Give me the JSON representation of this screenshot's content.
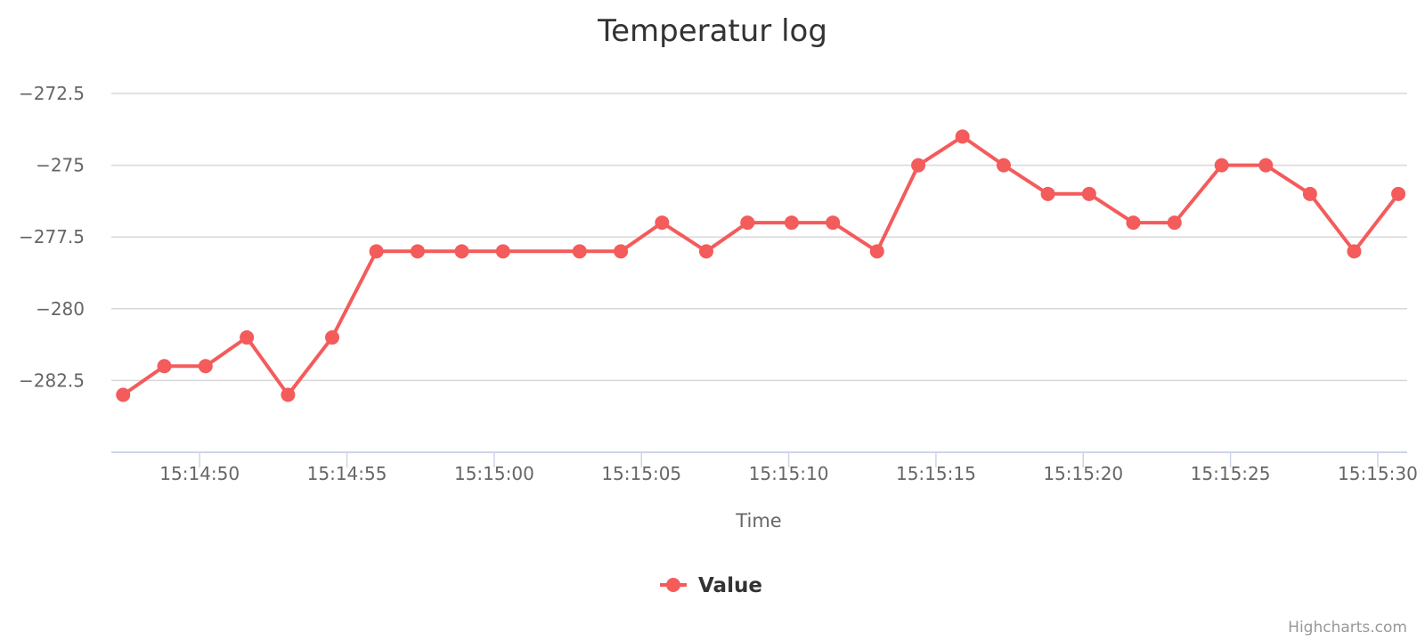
{
  "chart_data": {
    "type": "line",
    "title": "Temperatur log",
    "xlabel": "Time",
    "ylabel": "",
    "x_tick_labels": [
      "15:14:50",
      "15:14:55",
      "15:15:00",
      "15:15:05",
      "15:15:10",
      "15:15:15",
      "15:15:20",
      "15:15:25",
      "15:15:30"
    ],
    "y_tick_labels": [
      "-272.5",
      "-275",
      "-277.5",
      "-280",
      "-282.5"
    ],
    "ylim": [
      -285,
      -272.5
    ],
    "xlim": [
      "15:14:47",
      "15:15:31"
    ],
    "grid": true,
    "legend": "bottom-center",
    "series": [
      {
        "name": "Value",
        "color": "#f45b5b",
        "points": [
          {
            "x": "15:14:47.4",
            "y": -283
          },
          {
            "x": "15:14:48.8",
            "y": -282
          },
          {
            "x": "15:14:50.2",
            "y": -282
          },
          {
            "x": "15:14:51.6",
            "y": -281
          },
          {
            "x": "15:14:53.0",
            "y": -283
          },
          {
            "x": "15:14:54.5",
            "y": -281
          },
          {
            "x": "15:14:56.0",
            "y": -278
          },
          {
            "x": "15:14:57.4",
            "y": -278
          },
          {
            "x": "15:14:58.9",
            "y": -278
          },
          {
            "x": "15:15:00.3",
            "y": -278
          },
          {
            "x": "15:15:02.9",
            "y": -278
          },
          {
            "x": "15:15:04.3",
            "y": -278
          },
          {
            "x": "15:15:05.7",
            "y": -277
          },
          {
            "x": "15:15:07.2",
            "y": -278
          },
          {
            "x": "15:15:08.6",
            "y": -277
          },
          {
            "x": "15:15:10.1",
            "y": -277
          },
          {
            "x": "15:15:11.5",
            "y": -277
          },
          {
            "x": "15:15:13.0",
            "y": -278
          },
          {
            "x": "15:15:14.4",
            "y": -275
          },
          {
            "x": "15:15:15.9",
            "y": -274
          },
          {
            "x": "15:15:17.3",
            "y": -275
          },
          {
            "x": "15:15:18.8",
            "y": -276
          },
          {
            "x": "15:15:20.2",
            "y": -276
          },
          {
            "x": "15:15:21.7",
            "y": -277
          },
          {
            "x": "15:15:23.1",
            "y": -277
          },
          {
            "x": "15:15:24.7",
            "y": -275
          },
          {
            "x": "15:15:26.2",
            "y": -275
          },
          {
            "x": "15:15:27.7",
            "y": -276
          },
          {
            "x": "15:15:29.2",
            "y": -278
          },
          {
            "x": "15:15:30.7",
            "y": -276
          }
        ]
      }
    ]
  },
  "credits": "Highcharts.com"
}
